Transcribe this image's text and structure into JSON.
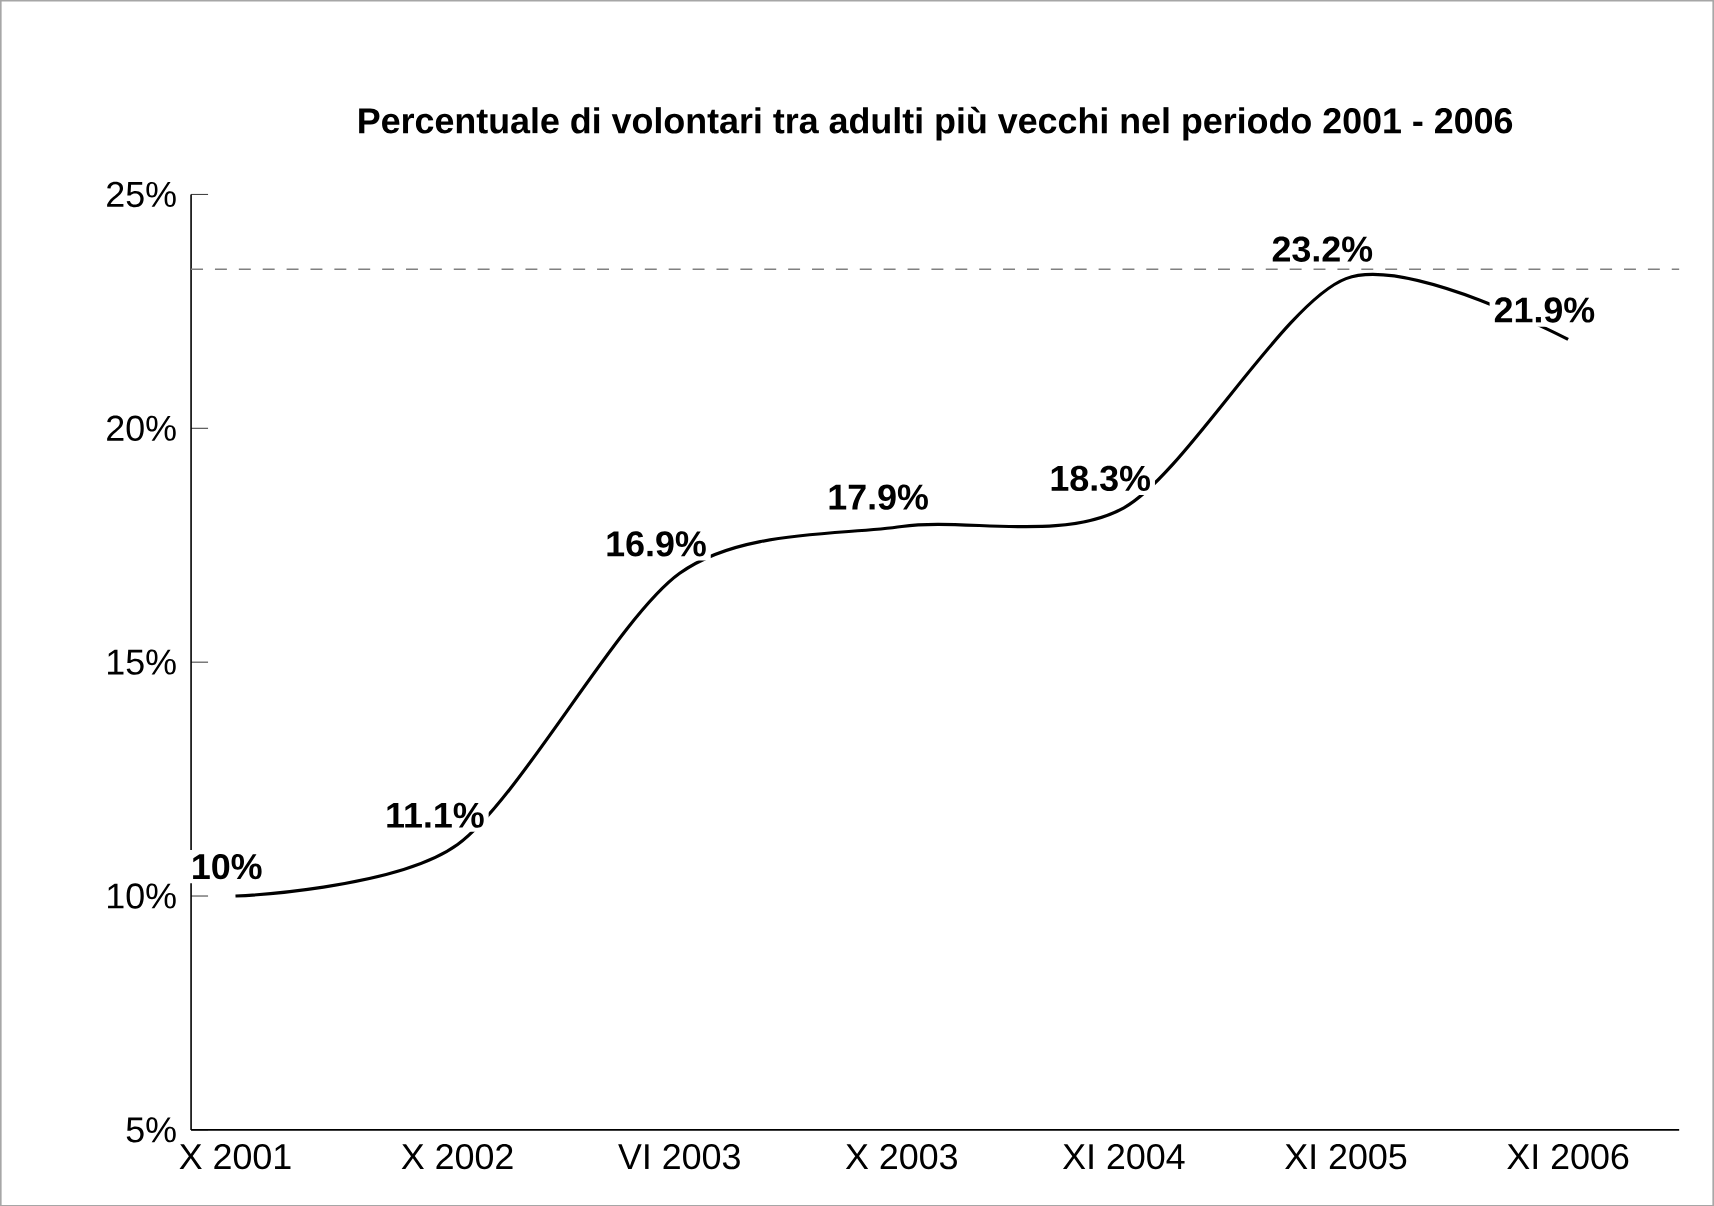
{
  "chart_data": {
    "type": "line",
    "title": "Percentuale di volontari tra adulti più vecchi nel periodo 2001 - 2006",
    "categories": [
      "X 2001",
      "X 2002",
      "VI 2003",
      "X 2003",
      "XI 2004",
      "XI 2005",
      "XI 2006"
    ],
    "values": [
      10,
      11.1,
      16.9,
      17.9,
      18.3,
      23.2,
      21.9
    ],
    "value_labels": [
      "10%",
      "11.1%",
      "16.9%",
      "17.9%",
      "18.3%",
      "23.2%",
      "21.9%"
    ],
    "color": "#000000",
    "ylim": [
      5,
      25
    ],
    "yticks": [
      {
        "value": 5,
        "label": "5%"
      },
      {
        "value": 10,
        "label": "10%"
      },
      {
        "value": 15,
        "label": "15%"
      },
      {
        "value": 20,
        "label": "20%"
      },
      {
        "value": 25,
        "label": "25%"
      }
    ],
    "ref_lines": [
      {
        "axis": "y",
        "value": 23.4,
        "color": "#808080",
        "line_style": "dashed"
      }
    ],
    "grid": false,
    "marker": "none",
    "line_style": "solid"
  }
}
